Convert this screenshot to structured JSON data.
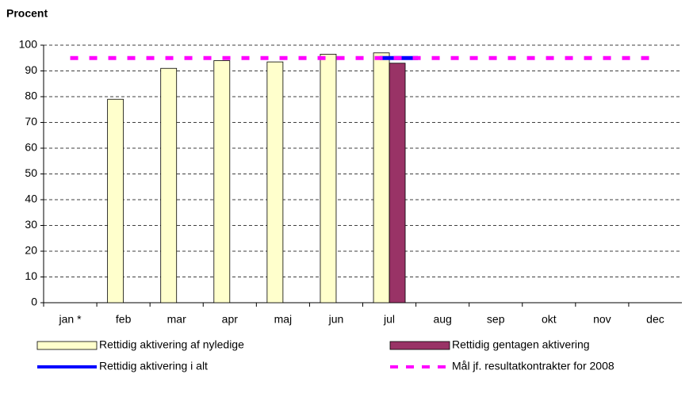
{
  "chart_data": {
    "type": "bar",
    "title": "Procent",
    "categories": [
      "jan *",
      "feb",
      "mar",
      "apr",
      "maj",
      "jun",
      "jul",
      "aug",
      "sep",
      "okt",
      "nov",
      "dec"
    ],
    "series": [
      {
        "name": "Rettidig aktivering af nyledige",
        "type": "bar",
        "color": "#ffffcc",
        "values": [
          null,
          79,
          91,
          94,
          93.5,
          96.5,
          97,
          null,
          null,
          null,
          null,
          null
        ]
      },
      {
        "name": "Rettidig gentagen aktivering",
        "type": "bar",
        "color": "#993366",
        "values": [
          null,
          null,
          null,
          null,
          null,
          null,
          93,
          null,
          null,
          null,
          null,
          null
        ]
      },
      {
        "name": "Rettidig aktivering i alt",
        "type": "line",
        "color": "#0000ff",
        "values": [
          null,
          null,
          null,
          null,
          null,
          null,
          95,
          null,
          null,
          null,
          null,
          null
        ]
      },
      {
        "name": "Mål jf. resultatkontrakter for 2008",
        "type": "line",
        "dashed": true,
        "color": "#ff00ff",
        "values": [
          95,
          95,
          95,
          95,
          95,
          95,
          95,
          95,
          95,
          95,
          95,
          95
        ]
      }
    ],
    "ylim": [
      0,
      100
    ],
    "yticks": [
      0,
      10,
      20,
      30,
      40,
      50,
      60,
      70,
      80,
      90,
      100
    ],
    "grid": true
  }
}
